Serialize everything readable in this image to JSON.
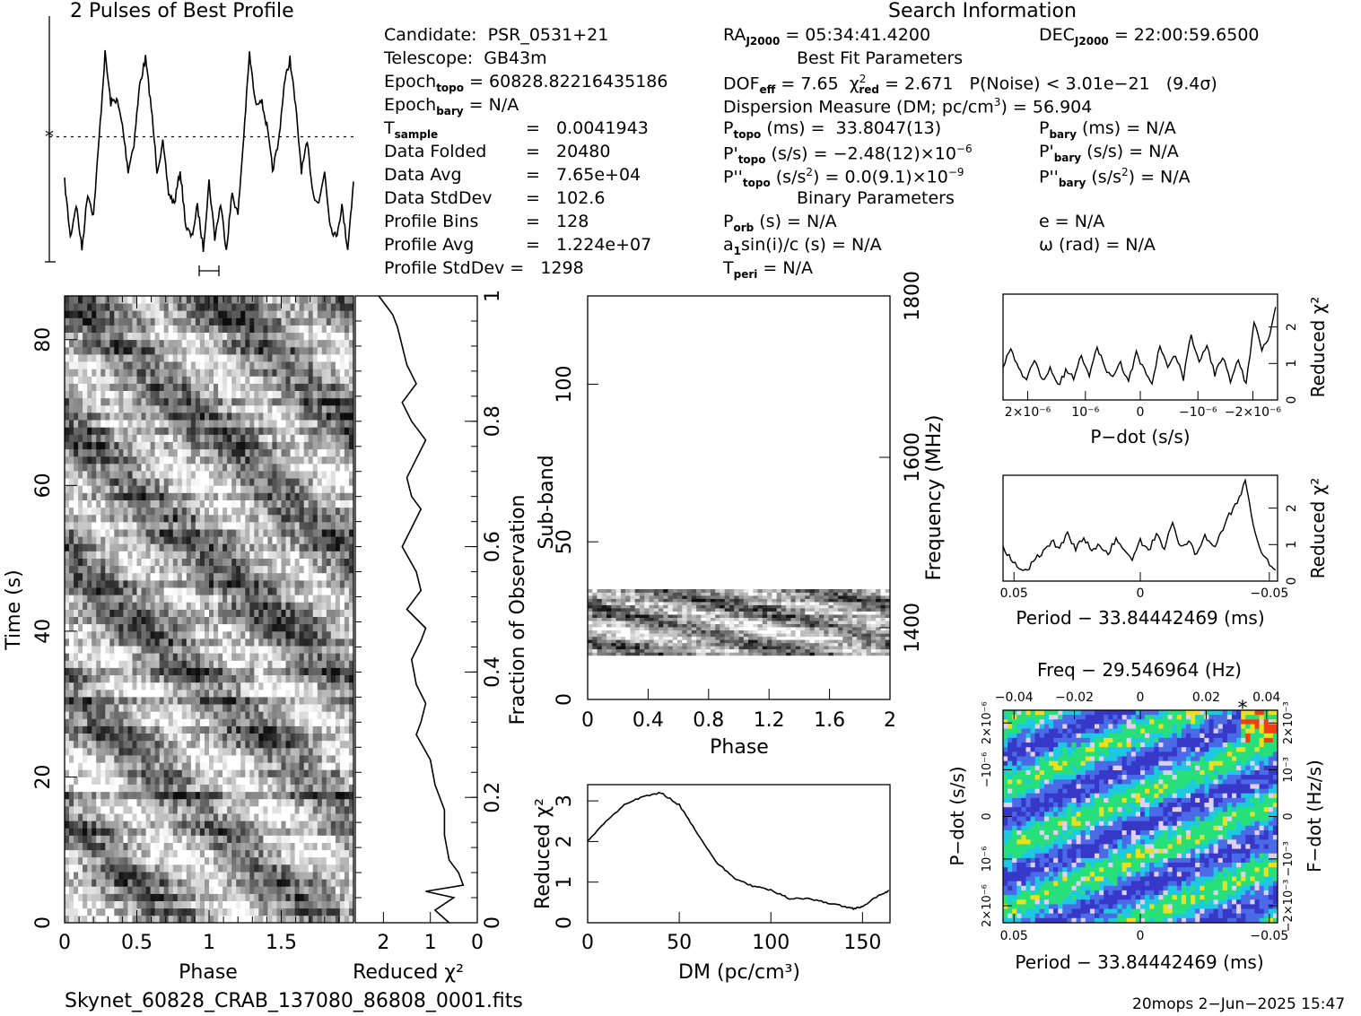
{
  "header": {
    "profile_title": "2 Pulses of Best Profile",
    "search_title": "Search Information"
  },
  "search_info": {
    "col1": [
      "Candidate:  PSR_0531+21",
      "Telescope:  GB43m",
      "Epoch_topo = 60828.82216435186",
      "Epoch_bary = N/A",
      "T_sample        =  0.0041943",
      "Data Folded      =  20480",
      "Data Avg         =  7.65e+04",
      "Data StdDev      =  102.6",
      "Profile Bins     =  128",
      "Profile Avg      =  1.224e+07",
      "Profile StdDev =  1298"
    ],
    "col2": [
      "RA_J2000 = 05:34:41.4200",
      "Best Fit Parameters",
      "DOF_eff = 7.65  χ²_red = 2.671   P(Noise) < 3.01e−21   (9.4σ)",
      "Dispersion Measure (DM; pc/cm³) = 56.904",
      "P_topo (ms) =  33.8047(13)",
      "P'_topo (s/s) = −2.48(12)×10⁻⁶",
      "P''_topo (s/s²) = 0.0(9.1)×10⁻⁹",
      "Binary Parameters",
      "P_orb (s) = N/A",
      "a₁sin(i)/c (s) = N/A",
      "T_peri = N/A"
    ],
    "col3": [
      "DEC_J2000 = 22:00:59.6500",
      "P_bary (ms) = N/A",
      "P'_bary (s/s) = N/A",
      "P''_bary (s/s²) = N/A",
      "e = N/A",
      "ω (rad) = N/A"
    ]
  },
  "footer": {
    "filename": "Skynet_60828_CRAB_137080_86808_0001.fits",
    "stamp": "20mops   2−Jun−2025 15:47"
  },
  "colors": {
    "ink": "#000000",
    "background": "#ffffff",
    "colormap": [
      "#3838c8",
      "#4a6ae8",
      "#1ec8e0",
      "#28e07a",
      "#e8e020",
      "#f04010"
    ]
  },
  "chart_data": [
    {
      "type": "line",
      "id": "profile",
      "title": "2 Pulses of Best Profile",
      "xlim": [
        0,
        2
      ],
      "x": [
        0.0,
        0.04,
        0.08,
        0.12,
        0.16,
        0.2,
        0.24,
        0.28,
        0.32,
        0.36,
        0.4,
        0.44,
        0.48,
        0.52,
        0.56,
        0.6,
        0.64,
        0.68,
        0.72,
        0.76,
        0.8,
        0.84,
        0.88,
        0.92,
        0.96,
        1.0,
        1.04,
        1.08,
        1.12,
        1.16,
        1.2,
        1.24,
        1.28,
        1.32,
        1.36,
        1.4,
        1.44,
        1.48,
        1.52,
        1.56,
        1.6,
        1.64,
        1.68,
        1.72,
        1.76,
        1.8,
        1.84,
        1.88,
        1.92,
        1.96,
        2.0
      ],
      "values": [
        0.35,
        0.1,
        0.25,
        0.05,
        0.3,
        0.2,
        0.55,
        0.92,
        0.7,
        0.72,
        0.6,
        0.4,
        0.52,
        0.78,
        0.9,
        0.68,
        0.4,
        0.52,
        0.3,
        0.25,
        0.4,
        0.15,
        0.1,
        0.24,
        0.05,
        0.35,
        0.1,
        0.25,
        0.05,
        0.3,
        0.2,
        0.55,
        0.92,
        0.7,
        0.72,
        0.6,
        0.4,
        0.52,
        0.78,
        0.9,
        0.68,
        0.4,
        0.52,
        0.3,
        0.25,
        0.4,
        0.15,
        0.1,
        0.24,
        0.05,
        0.35
      ],
      "mean_line": 0.55
    },
    {
      "type": "heatmap",
      "id": "time-phase",
      "xlabel": "Phase",
      "ylabel": "Time (s)",
      "xlim": [
        0,
        2
      ],
      "ylim": [
        0,
        86
      ],
      "x_ticks": [
        "0",
        "0.5",
        "1",
        "1.5"
      ],
      "y_ticks": [
        "0",
        "20",
        "40",
        "60",
        "80"
      ]
    },
    {
      "type": "line",
      "id": "reduced-chi2-time",
      "xlabel": "Reduced χ²",
      "ylabel": "Fraction of Observation",
      "x_ticks": [
        "2",
        "1",
        "0"
      ],
      "y_ticks": [
        "0",
        "0.2",
        "0.4",
        "0.6",
        "0.8",
        "1"
      ],
      "x": [
        0.6,
        0.9,
        0.5,
        1.1,
        0.3,
        0.4,
        0.6,
        0.7,
        0.7,
        0.9,
        1.0,
        1.3,
        1.2,
        1.1,
        1.3,
        1.4,
        1.2,
        1.1,
        1.5,
        1.2,
        1.3,
        1.6,
        1.4,
        1.2,
        1.4,
        1.5,
        1.3,
        1.1,
        1.4,
        1.6,
        1.3,
        1.5,
        1.6,
        1.7,
        1.8,
        2.0,
        2.1
      ],
      "y": [
        0.0,
        0.02,
        0.04,
        0.05,
        0.06,
        0.08,
        0.1,
        0.14,
        0.18,
        0.22,
        0.26,
        0.3,
        0.32,
        0.35,
        0.38,
        0.42,
        0.45,
        0.47,
        0.5,
        0.53,
        0.56,
        0.6,
        0.63,
        0.66,
        0.68,
        0.71,
        0.74,
        0.77,
        0.8,
        0.83,
        0.86,
        0.89,
        0.92,
        0.95,
        0.97,
        0.99,
        1.0
      ]
    },
    {
      "type": "heatmap",
      "id": "subband-phase",
      "xlabel": "Phase",
      "ylabel": "Sub-band",
      "y2label": "Frequency (MHz)",
      "xlim": [
        0,
        2
      ],
      "ylim": [
        0,
        128
      ],
      "x_ticks": [
        "0",
        "0.4",
        "0.8",
        "1.2",
        "1.6",
        "2"
      ],
      "y_ticks": [
        "0",
        "50",
        "100"
      ],
      "y2_ticks": [
        "1400",
        "1600",
        "1800"
      ],
      "band_rows": [
        14,
        35
      ]
    },
    {
      "type": "line",
      "id": "dm-curve",
      "xlabel": "DM (pc/cm³)",
      "ylabel": "Reduced χ²",
      "xlim": [
        0,
        165
      ],
      "ylim": [
        0,
        3.4
      ],
      "x": [
        0,
        10,
        20,
        30,
        40,
        50,
        60,
        70,
        80,
        90,
        100,
        110,
        120,
        130,
        140,
        145,
        150,
        160,
        165
      ],
      "values": [
        2.0,
        2.5,
        2.9,
        3.1,
        3.2,
        2.9,
        2.2,
        1.5,
        1.1,
        0.9,
        0.8,
        0.6,
        0.6,
        0.5,
        0.4,
        0.35,
        0.4,
        0.7,
        0.8
      ],
      "x_ticks": [
        "0",
        "50",
        "100",
        "150"
      ],
      "y_ticks": [
        "0",
        "1",
        "2",
        "3"
      ]
    },
    {
      "type": "line",
      "id": "pdot-curve",
      "xlabel": "P−dot (s/s)",
      "ylabel": "Reduced χ²",
      "ylim": [
        0,
        2.9
      ],
      "x_ticks": [
        "2×10⁻⁶",
        "10⁻⁶",
        "0",
        "−10⁻⁶",
        "−2×10⁻⁶"
      ],
      "y_ticks": [
        "0",
        "1",
        "2"
      ],
      "values": [
        0.9,
        1.4,
        0.8,
        0.6,
        1.1,
        0.5,
        0.9,
        0.4,
        0.8,
        0.6,
        1.2,
        0.7,
        1.4,
        0.9,
        0.6,
        1.0,
        0.5,
        1.3,
        0.8,
        0.4,
        1.5,
        0.9,
        1.2,
        0.6,
        1.8,
        1.0,
        1.5,
        0.7,
        1.2,
        0.5,
        1.1,
        0.4,
        2.1,
        1.4,
        1.7,
        2.8
      ]
    },
    {
      "type": "line",
      "id": "period-curve",
      "xlabel": "Period − 33.84442469 (ms)",
      "ylabel": "Reduced χ²",
      "ylim": [
        0,
        2.9
      ],
      "x_ticks": [
        "0.05",
        "0",
        "−0.05"
      ],
      "y_ticks": [
        "0",
        "1",
        "2"
      ],
      "values": [
        0.9,
        0.6,
        0.4,
        0.3,
        0.6,
        0.8,
        1.1,
        0.9,
        1.3,
        0.9,
        1.2,
        0.8,
        1.0,
        0.7,
        1.2,
        0.8,
        0.6,
        1.1,
        0.8,
        1.3,
        0.9,
        1.6,
        0.9,
        1.1,
        0.7,
        1.3,
        0.9,
        1.3,
        1.8,
        2.2,
        2.7,
        1.5,
        0.8,
        0.5,
        0.3
      ]
    },
    {
      "type": "heatmap",
      "id": "period-pdot",
      "title": "Freq − 29.546964 (Hz)",
      "xlabel": "Period − 33.84442469 (ms)",
      "ylabel": "P−dot (s/s)",
      "y2label": "F−dot (Hz/s)",
      "x_ticks": [
        "0.05",
        "0",
        "−0.05"
      ],
      "x2_ticks": [
        "−0.04",
        "−0.02",
        "0",
        "0.02",
        "0.04"
      ],
      "y_ticks": [
        "2×10⁻⁶",
        "10⁻⁶",
        "0",
        "−10⁻⁶",
        "2×10⁻⁶"
      ],
      "y2_ticks": [
        "2×10⁻³",
        "10⁻³",
        "0",
        "−10⁻³",
        "−2×10⁻³"
      ]
    }
  ]
}
